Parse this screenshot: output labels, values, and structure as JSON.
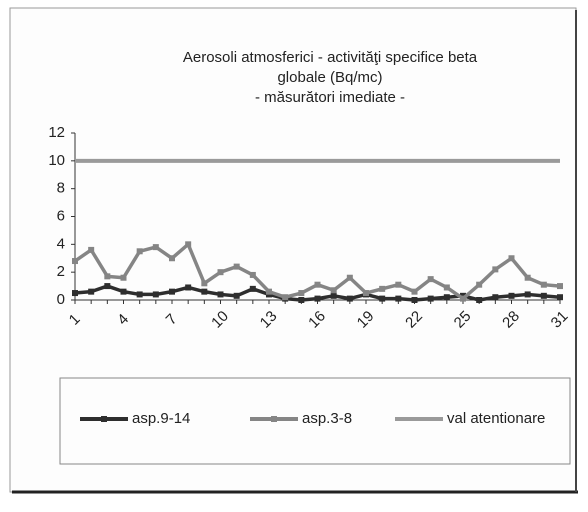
{
  "chart_data": {
    "type": "line",
    "title": [
      "Aerosoli atmosferici  - activităţi specifice beta",
      "globale (Bq/mc)",
      "- măsurători imediate -"
    ],
    "categories": [
      1,
      null,
      null,
      4,
      null,
      null,
      7,
      null,
      null,
      10,
      null,
      null,
      13,
      null,
      null,
      16,
      null,
      null,
      19,
      null,
      null,
      22,
      null,
      null,
      25,
      null,
      null,
      28,
      null,
      null,
      31
    ],
    "series": [
      {
        "name": "asp.9-14",
        "color": "#2e2e2e",
        "values": [
          0.5,
          0.6,
          1.0,
          0.6,
          0.4,
          0.4,
          0.6,
          0.9,
          0.6,
          0.4,
          0.3,
          0.8,
          0.4,
          0.1,
          0.0,
          0.1,
          0.3,
          0.1,
          0.4,
          0.1,
          0.1,
          0.0,
          0.1,
          0.2,
          0.3,
          0.0,
          0.2,
          0.3,
          0.4,
          0.3,
          0.2
        ]
      },
      {
        "name": "asp.3-8",
        "color": "#858585",
        "values": [
          2.8,
          3.6,
          1.7,
          1.6,
          3.5,
          3.8,
          3.0,
          4.0,
          1.2,
          2.0,
          2.4,
          1.8,
          0.6,
          0.2,
          0.5,
          1.1,
          0.7,
          1.6,
          0.5,
          0.8,
          1.1,
          0.6,
          1.5,
          0.9,
          0.1,
          1.1,
          2.2,
          3.0,
          1.6,
          1.1,
          1.0
        ]
      },
      {
        "name": "val atentionare",
        "color": "#9a9a9a",
        "values": [
          10,
          10,
          10,
          10,
          10,
          10,
          10,
          10,
          10,
          10,
          10,
          10,
          10,
          10,
          10,
          10,
          10,
          10,
          10,
          10,
          10,
          10,
          10,
          10,
          10,
          10,
          10,
          10,
          10,
          10,
          10
        ]
      }
    ],
    "ylim": [
      0,
      12
    ],
    "yticks": [
      0,
      2,
      4,
      6,
      8,
      10,
      12
    ],
    "grid": false,
    "legend": "bottom"
  }
}
